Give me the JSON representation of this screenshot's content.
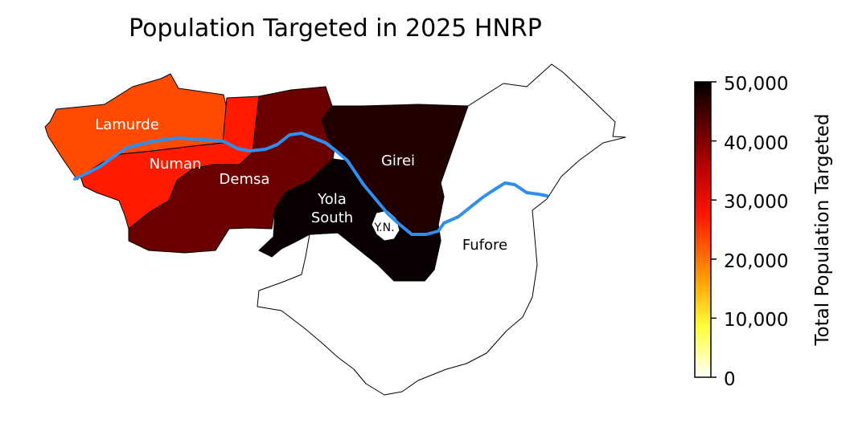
{
  "title": "Population Targeted in 2025 HNRP",
  "colorbar": {
    "label": "Total Population Targeted",
    "ticks": [
      "0",
      "10,000",
      "20,000",
      "30,000",
      "40,000",
      "50,000"
    ],
    "min": 0,
    "max": 50000,
    "colormap": "hot_r",
    "gradient": [
      "#ffffff",
      "#ffff40",
      "#ffa500",
      "#ff2a00",
      "#b00000",
      "#5a0000",
      "#000000"
    ]
  },
  "regions": [
    {
      "name": "Lamurde",
      "color": "#ff4a00",
      "label_color": "#ffffff"
    },
    {
      "name": "Numan",
      "color": "#ff1a00",
      "label_color": "#ffffff"
    },
    {
      "name": "Demsa",
      "color": "#6a0000",
      "label_color": "#ffffff"
    },
    {
      "name": "Girei",
      "color": "#220000",
      "label_color": "#ffffff"
    },
    {
      "name": "Yola South",
      "lines": [
        "Yola",
        "South"
      ],
      "color": "#080000",
      "label_color": "#ffffff"
    },
    {
      "name": "Y.N.",
      "color": "#ffffff",
      "label_color": "#000000"
    },
    {
      "name": "Fufore",
      "color": "#ffffff",
      "label_color": "#000000"
    }
  ],
  "river": {
    "color": "#2f8ff0"
  }
}
